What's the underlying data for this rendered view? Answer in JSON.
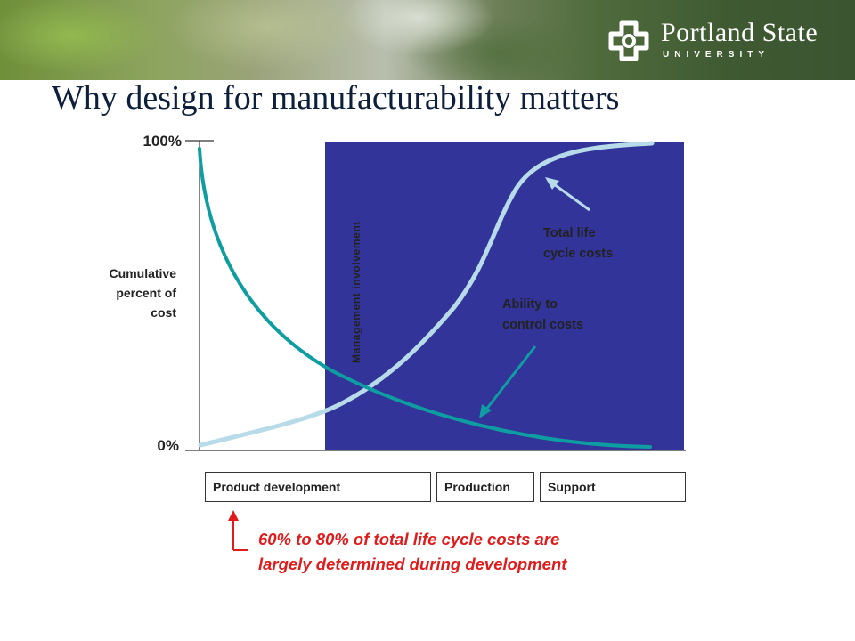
{
  "slide": {
    "title": "Why design for manufacturability matters",
    "logo": {
      "name": "Portland State",
      "subtitle": "UNIVERSITY"
    }
  },
  "chart": {
    "y_top_label": "100%",
    "y_bottom_label": "0%",
    "y_axis_label": [
      "Cumulative",
      "percent of",
      "cost"
    ],
    "shaded_region_label": "Management involvement",
    "curve_total_label": [
      "Total life",
      "cycle costs"
    ],
    "curve_control_label": [
      "Ability to",
      "control costs"
    ],
    "phases": [
      "Product development",
      "Production",
      "Support"
    ],
    "note": [
      "60% to 80% of total life cycle costs are",
      "largely determined during development"
    ]
  },
  "colors": {
    "shaded_region": "#33349a",
    "total_cost_curve": "#b7dbe8",
    "control_curve": "#0e9da0",
    "note": "#e01b1b",
    "title": "#0d1f3a"
  }
}
